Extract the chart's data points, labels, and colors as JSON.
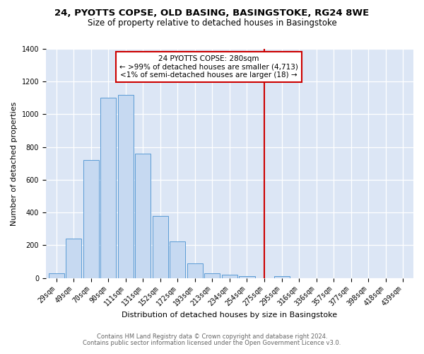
{
  "title1": "24, PYOTTS COPSE, OLD BASING, BASINGSTOKE, RG24 8WE",
  "title2": "Size of property relative to detached houses in Basingstoke",
  "xlabel": "Distribution of detached houses by size in Basingstoke",
  "ylabel": "Number of detached properties",
  "bar_labels": [
    "29sqm",
    "49sqm",
    "70sqm",
    "90sqm",
    "111sqm",
    "131sqm",
    "152sqm",
    "172sqm",
    "193sqm",
    "213sqm",
    "234sqm",
    "254sqm",
    "275sqm",
    "295sqm",
    "316sqm",
    "336sqm",
    "357sqm",
    "377sqm",
    "398sqm",
    "418sqm",
    "439sqm"
  ],
  "bar_values": [
    30,
    240,
    720,
    1100,
    1120,
    760,
    380,
    225,
    90,
    30,
    20,
    10,
    0,
    10,
    0,
    0,
    0,
    0,
    0,
    0,
    0
  ],
  "bar_color": "#c6d9f1",
  "bar_edge_color": "#5b9bd5",
  "vline_x_index": 12,
  "vline_color": "#cc0000",
  "annotation_title": "24 PYOTTS COPSE: 280sqm",
  "annotation_line1": "← >99% of detached houses are smaller (4,713)",
  "annotation_line2": "<1% of semi-detached houses are larger (18) →",
  "annotation_box_facecolor": "white",
  "annotation_box_edgecolor": "#cc0000",
  "ylim_max": 1400,
  "yticks": [
    0,
    200,
    400,
    600,
    800,
    1000,
    1200,
    1400
  ],
  "bg_color": "#dce6f5",
  "grid_color": "#ffffff",
  "title1_fontsize": 9.5,
  "title2_fontsize": 8.5,
  "xlabel_fontsize": 8.0,
  "ylabel_fontsize": 8.0,
  "tick_fontsize": 7.0,
  "annot_fontsize": 7.5,
  "footer_fontsize": 6.0,
  "footer1": "Contains HM Land Registry data © Crown copyright and database right 2024.",
  "footer2": "Contains public sector information licensed under the Open Government Licence v3.0."
}
